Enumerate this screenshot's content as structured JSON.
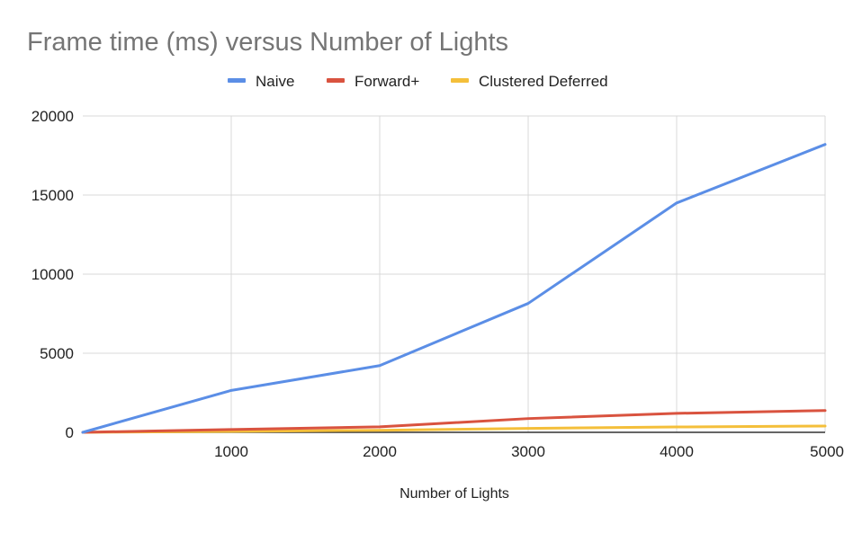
{
  "chart_data": {
    "type": "line",
    "title": "Frame time (ms) versus Number of Lights",
    "xlabel": "Number of Lights",
    "ylabel": "",
    "x": [
      0,
      1000,
      2000,
      3000,
      4000,
      5000
    ],
    "x_tick_labels": [
      "1000",
      "2000",
      "3000",
      "4000",
      "5000"
    ],
    "y_tick_labels": [
      "0",
      "5000",
      "10000",
      "15000",
      "20000"
    ],
    "xlim": [
      0,
      5000
    ],
    "ylim": [
      0,
      20000
    ],
    "grid": true,
    "legend_position": "top-center",
    "series": [
      {
        "name": "Naive",
        "color": "#5b8ee6",
        "values": [
          0,
          2650,
          4220,
          8150,
          14500,
          18200
        ]
      },
      {
        "name": "Forward+",
        "color": "#d9533f",
        "values": [
          0,
          180,
          350,
          870,
          1200,
          1380
        ]
      },
      {
        "name": "Clustered Deferred",
        "color": "#f4bf3a",
        "values": [
          0,
          60,
          130,
          250,
          340,
          400
        ]
      }
    ]
  }
}
